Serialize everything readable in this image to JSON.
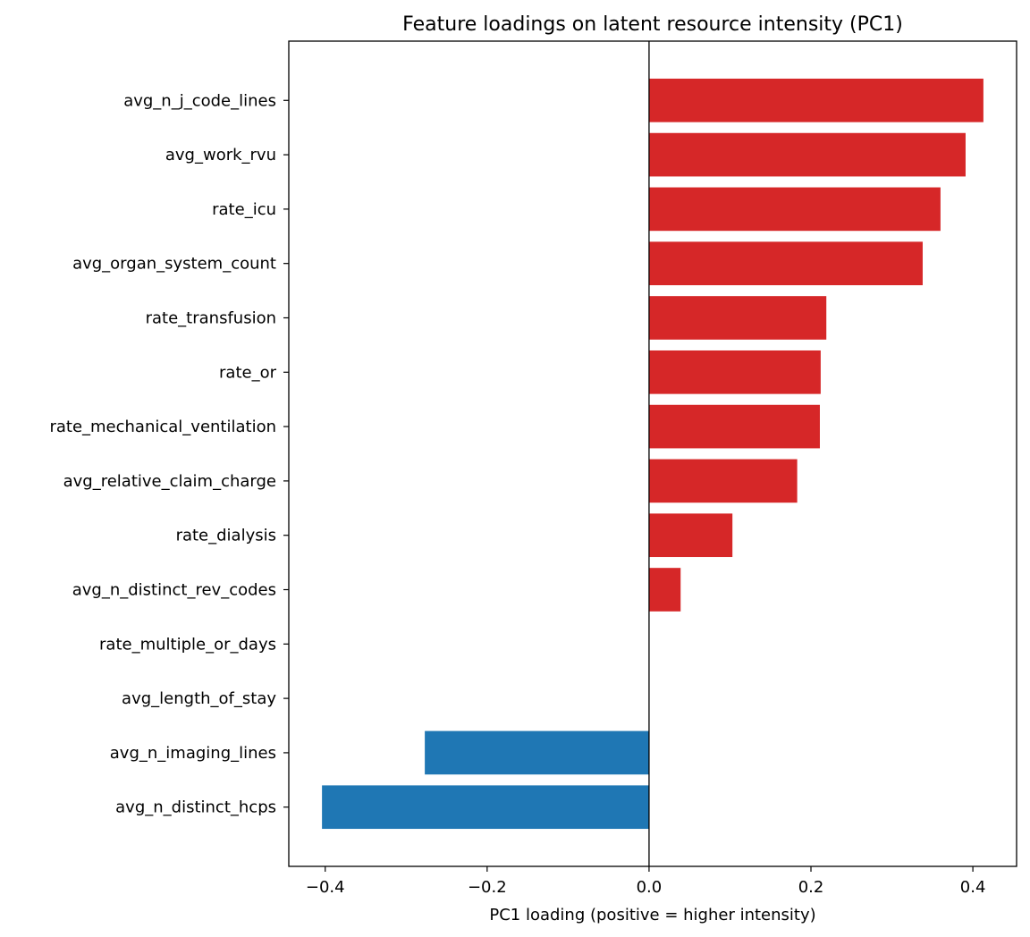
{
  "chart_data": {
    "type": "bar",
    "orientation": "horizontal",
    "title": "Feature loadings on latent resource intensity (PC1)",
    "xlabel": "PC1 loading (positive = higher intensity)",
    "ylabel": "",
    "xlim": [
      -0.445,
      0.454
    ],
    "xticks": [
      -0.4,
      -0.2,
      0.0,
      0.2,
      0.4
    ],
    "xtick_labels": [
      "−0.4",
      "−0.2",
      "0.0",
      "0.2",
      "0.4"
    ],
    "grid": false,
    "zero_line": true,
    "positive_color": "#d62728",
    "negative_color": "#1f77b4",
    "categories": [
      "avg_n_j_code_lines",
      "avg_work_rvu",
      "rate_icu",
      "avg_organ_system_count",
      "rate_transfusion",
      "rate_or",
      "rate_mechanical_ventilation",
      "avg_relative_claim_charge",
      "rate_dialysis",
      "avg_n_distinct_rev_codes",
      "rate_multiple_or_days",
      "avg_length_of_stay",
      "avg_n_imaging_lines",
      "avg_n_distinct_hcps"
    ],
    "values": [
      0.413,
      0.391,
      0.36,
      0.338,
      0.219,
      0.212,
      0.211,
      0.183,
      0.103,
      0.039,
      0.0,
      0.0,
      -0.277,
      -0.404
    ]
  }
}
